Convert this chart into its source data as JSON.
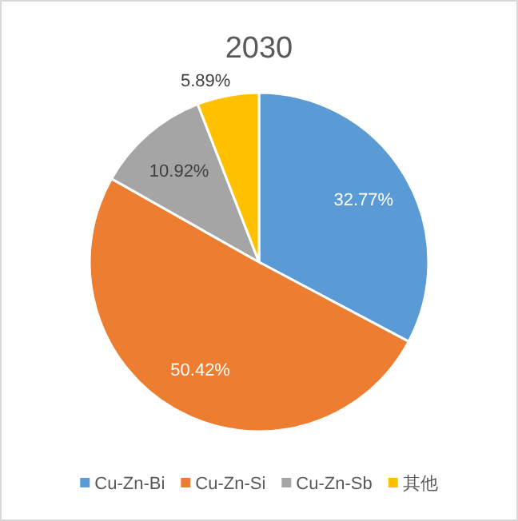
{
  "chart_data": {
    "type": "pie",
    "title": "2030",
    "categories": [
      "Cu-Zn-Bi",
      "Cu-Zn-Si",
      "Cu-Zn-Sb",
      "其他"
    ],
    "values": [
      32.77,
      50.42,
      10.92,
      5.89
    ],
    "colors": [
      "#5b9bd5",
      "#ed7d31",
      "#a5a5a5",
      "#ffc000"
    ],
    "value_labels": [
      "32.77%",
      "50.42%",
      "10.92%",
      "5.89%"
    ],
    "legend": "bottom"
  }
}
